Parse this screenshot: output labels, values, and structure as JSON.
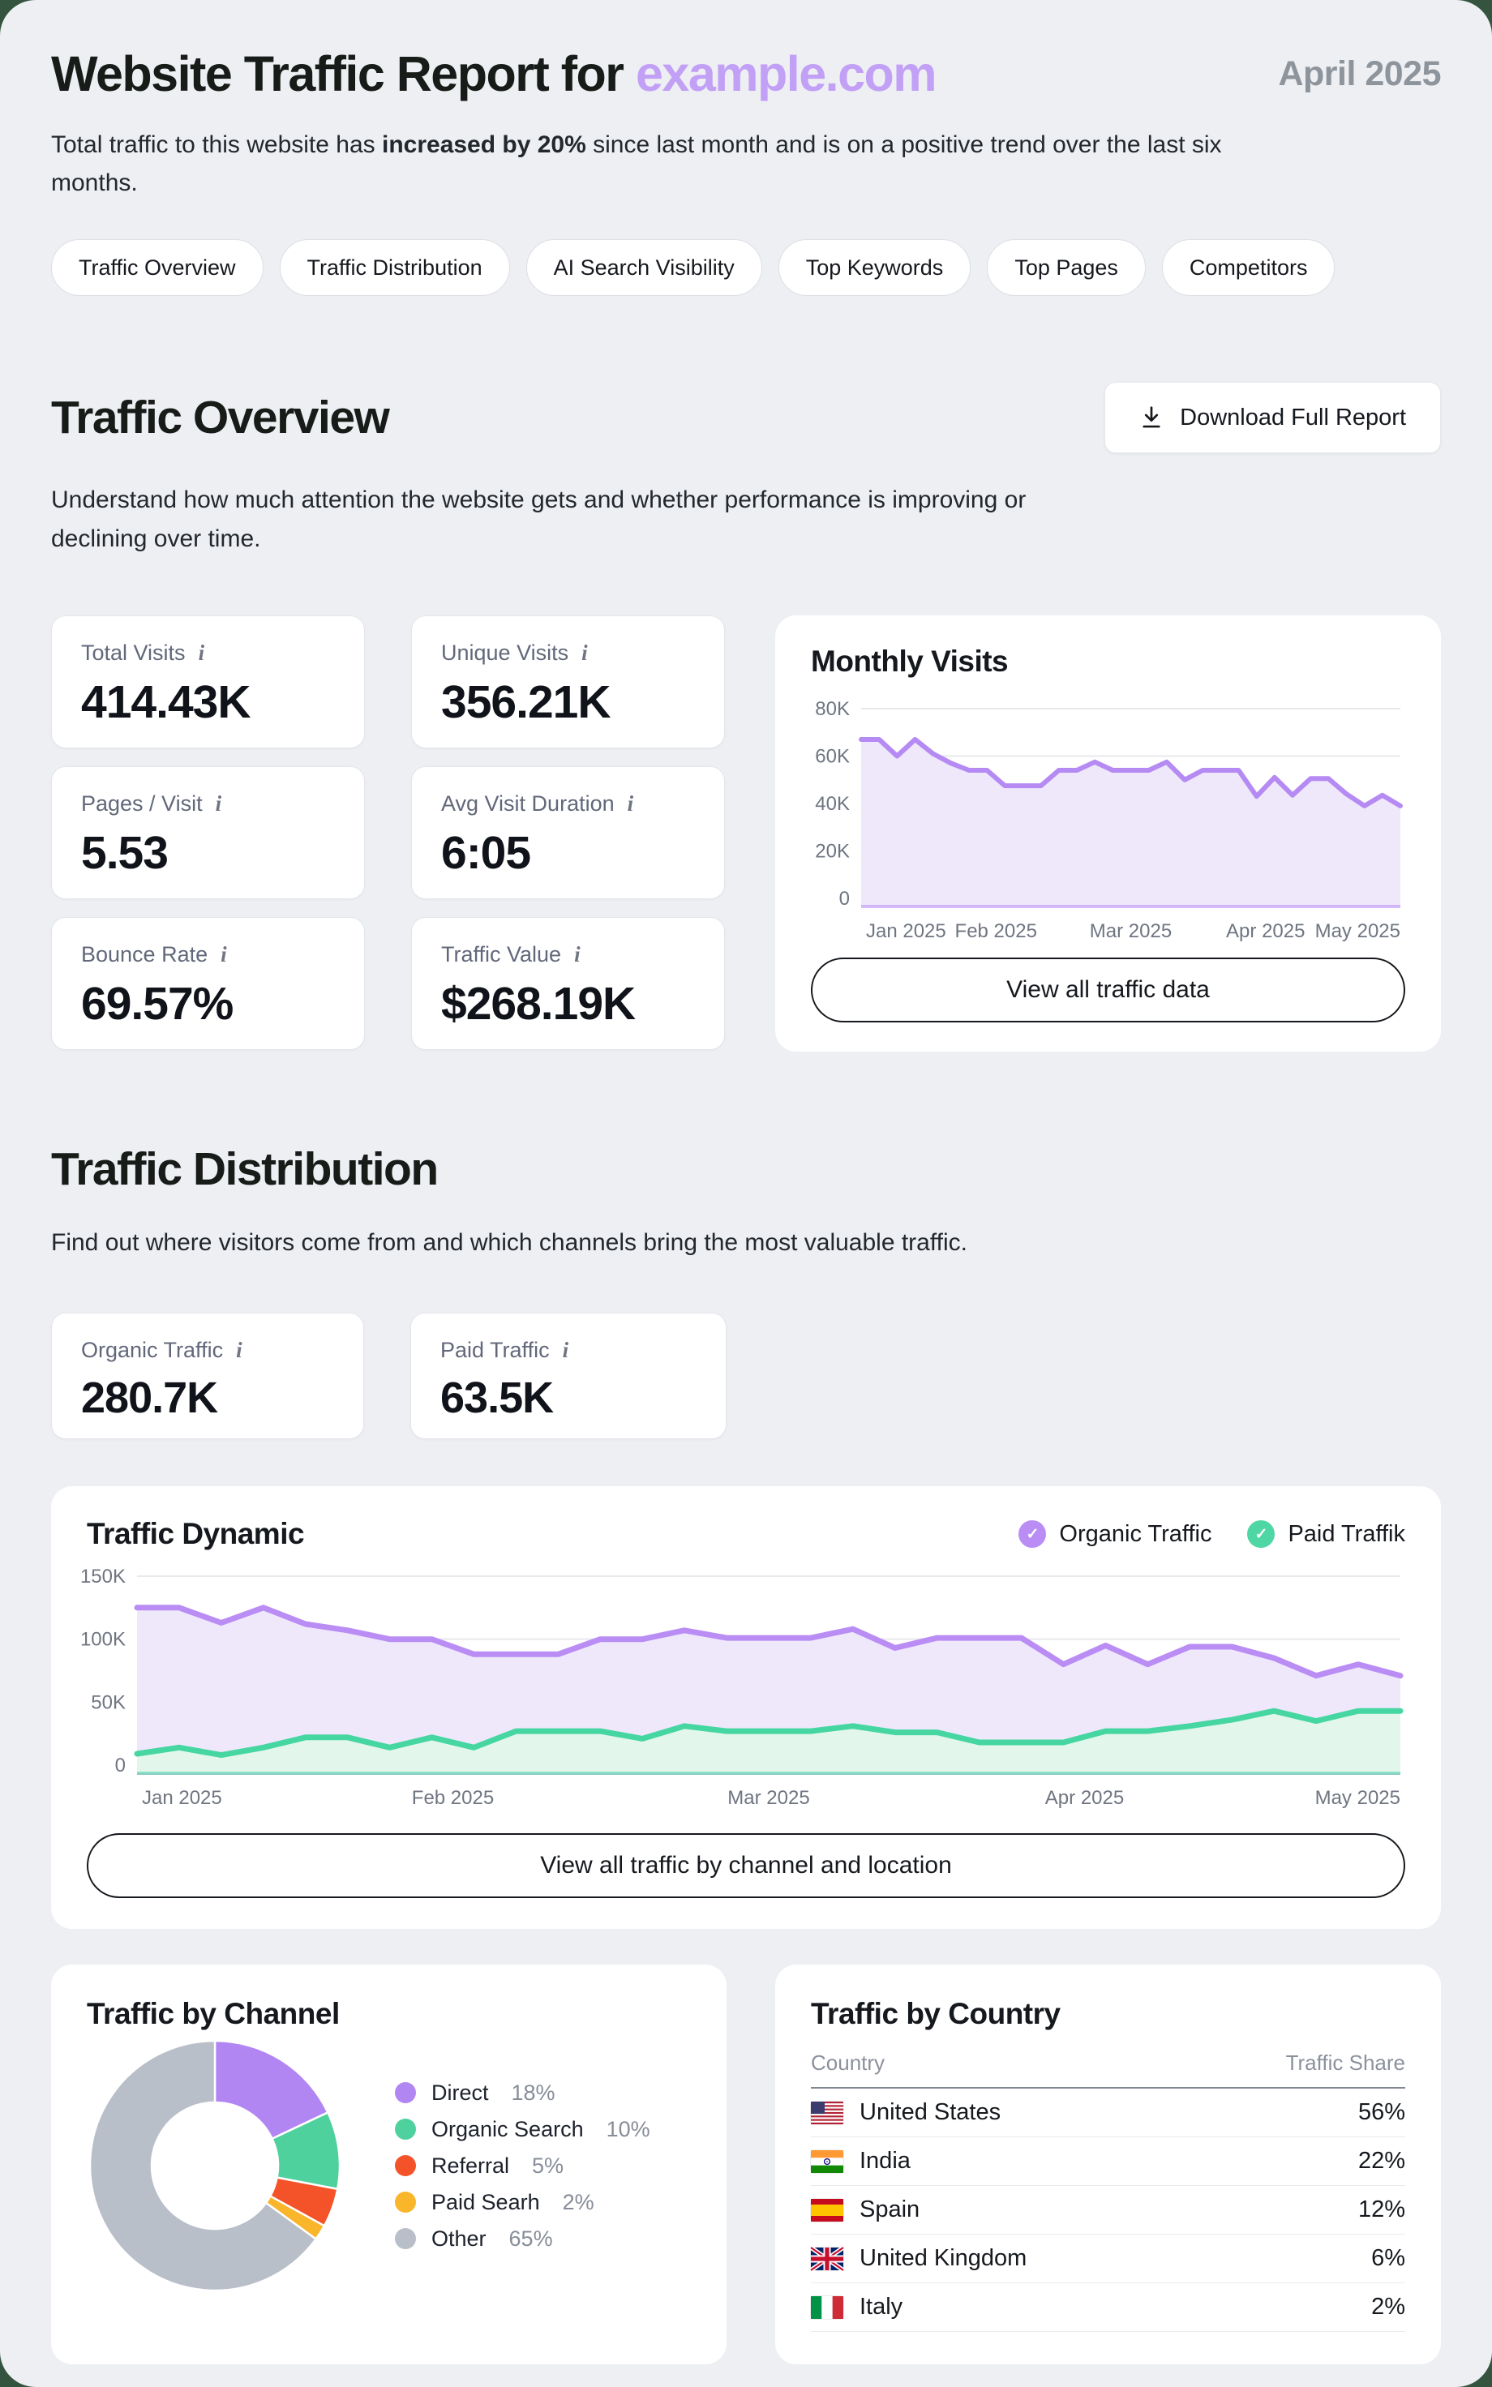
{
  "page": {
    "title_prefix": "Website Traffic Report for ",
    "title_domain": "example.com",
    "period": "April 2025",
    "intro_prefix": "Total traffic to this website has ",
    "intro_bold": "increased by 20%",
    "intro_suffix": " since last month and is on a positive trend over the last six months."
  },
  "nav_pills": [
    "Traffic Overview",
    "Traffic Distribution",
    "AI Search Visibility",
    "Top Keywords",
    "Top Pages",
    "Competitors"
  ],
  "overview": {
    "heading": "Traffic Overview",
    "download_label": "Download Full Report",
    "description": "Understand how much attention the website gets and whether performance is improving or declining over time.",
    "stats": [
      {
        "label": "Total Visits",
        "value": "414.43K"
      },
      {
        "label": "Unique Visits",
        "value": "356.21K"
      },
      {
        "label": "Pages / Visit",
        "value": "5.53"
      },
      {
        "label": "Avg Visit Duration",
        "value": "6:05"
      },
      {
        "label": "Bounce Rate",
        "value": "69.57%"
      },
      {
        "label": "Traffic Value",
        "value": "$268.19K"
      }
    ],
    "monthly": {
      "title": "Monthly Visits",
      "button": "View all traffic data"
    }
  },
  "distribution": {
    "heading": "Traffic Distribution",
    "description": "Find out where visitors come from and which channels bring the most valuable traffic.",
    "stats": [
      {
        "label": "Organic Traffic",
        "value": "280.7K"
      },
      {
        "label": "Paid Traffic",
        "value": "63.5K"
      }
    ],
    "dynamic": {
      "title": "Traffic Dynamic",
      "legend": [
        {
          "label": "Organic Traffic",
          "color": "#b98df4"
        },
        {
          "label": "Paid Traffik",
          "color": "#4ed6a4"
        }
      ],
      "button": "View all traffic by channel and location"
    }
  },
  "by_channel": {
    "title": "Traffic by Channel"
  },
  "by_country": {
    "title": "Traffic by Country",
    "columns": [
      "Country",
      "Traffic Share"
    ],
    "rows": [
      {
        "code": "us",
        "name": "United States",
        "share": "56%"
      },
      {
        "code": "in",
        "name": "India",
        "share": "22%"
      },
      {
        "code": "es",
        "name": "Spain",
        "share": "12%"
      },
      {
        "code": "gb",
        "name": "United Kingdom",
        "share": "6%"
      },
      {
        "code": "it",
        "name": "Italy",
        "share": "2%"
      }
    ]
  },
  "colors": {
    "accent_purple": "#c2a0f6",
    "chart_purple": "#b58af3",
    "chart_purple_fill": "#efe8fb",
    "chart_green": "#45d6a1",
    "chart_green_fill": "#e2f6ec",
    "page_bg": "#edeff2",
    "frame_bg": "#35543f"
  },
  "chart_data": [
    {
      "id": "monthly_visits",
      "type": "area",
      "title": "Monthly Visits",
      "x_ticks": [
        "Jan 2025",
        "Feb 2025",
        "Mar 2025",
        "Apr 2025",
        "May 2025"
      ],
      "y_ticks": [
        0,
        20000,
        40000,
        60000,
        80000
      ],
      "y_tick_labels": [
        "0",
        "20K",
        "40K",
        "60K",
        "80K"
      ],
      "ylim": [
        0,
        80000
      ],
      "grid": true,
      "series": [
        {
          "name": "Monthly Visits",
          "color": "#b58af3",
          "fill": "#efe8fb",
          "width": 6,
          "values": [
            67000,
            67000,
            60000,
            67000,
            61000,
            57000,
            54000,
            54000,
            47500,
            47500,
            47500,
            54000,
            54000,
            57500,
            54000,
            54000,
            54000,
            57500,
            50000,
            54000,
            54000,
            54000,
            43000,
            51000,
            43500,
            50500,
            50500,
            44000,
            39000,
            43500,
            39000
          ]
        }
      ]
    },
    {
      "id": "traffic_dynamic",
      "type": "area",
      "title": "Traffic Dynamic",
      "x_ticks": [
        "Jan 2025",
        "Feb 2025",
        "Mar 2025",
        "Apr 2025",
        "May 2025"
      ],
      "y_ticks": [
        0,
        50000,
        100000,
        150000
      ],
      "y_tick_labels": [
        "0",
        "50K",
        "100K",
        "150K"
      ],
      "ylim": [
        0,
        150000
      ],
      "grid": true,
      "legend_position": "top-right",
      "series": [
        {
          "name": "Organic Traffic",
          "color": "#b98df4",
          "fill": "#efe8fb",
          "width": 7,
          "values": [
            125000,
            125000,
            113000,
            125000,
            112000,
            107000,
            100000,
            100000,
            88000,
            88000,
            88000,
            100000,
            100000,
            107000,
            101000,
            101000,
            101000,
            108000,
            93000,
            101000,
            101000,
            101000,
            80000,
            95000,
            80000,
            94000,
            94000,
            85000,
            71000,
            80000,
            71000
          ]
        },
        {
          "name": "Paid Traffik",
          "color": "#45d6a1",
          "fill": "#e2f6ec",
          "width": 7,
          "values": [
            9000,
            14000,
            8000,
            14000,
            22000,
            22000,
            14000,
            22000,
            14000,
            27000,
            27000,
            27000,
            21000,
            31000,
            27000,
            27000,
            27000,
            31000,
            26000,
            26000,
            18000,
            18000,
            18000,
            27000,
            27000,
            31000,
            36000,
            43000,
            35000,
            43000,
            43000
          ]
        }
      ]
    },
    {
      "id": "traffic_by_channel",
      "type": "pie",
      "title": "Traffic by Channel",
      "labels": [
        "Direct",
        "Organic Search",
        "Referral",
        "Paid Searh",
        "Other"
      ],
      "values": [
        18,
        10,
        5,
        2,
        65
      ],
      "share_labels": [
        "18%",
        "10%",
        "5%",
        "2%",
        "65%"
      ],
      "colors": [
        "#b286f2",
        "#4fd19e",
        "#f4532a",
        "#f9b62a",
        "#b9bfc9"
      ]
    }
  ]
}
